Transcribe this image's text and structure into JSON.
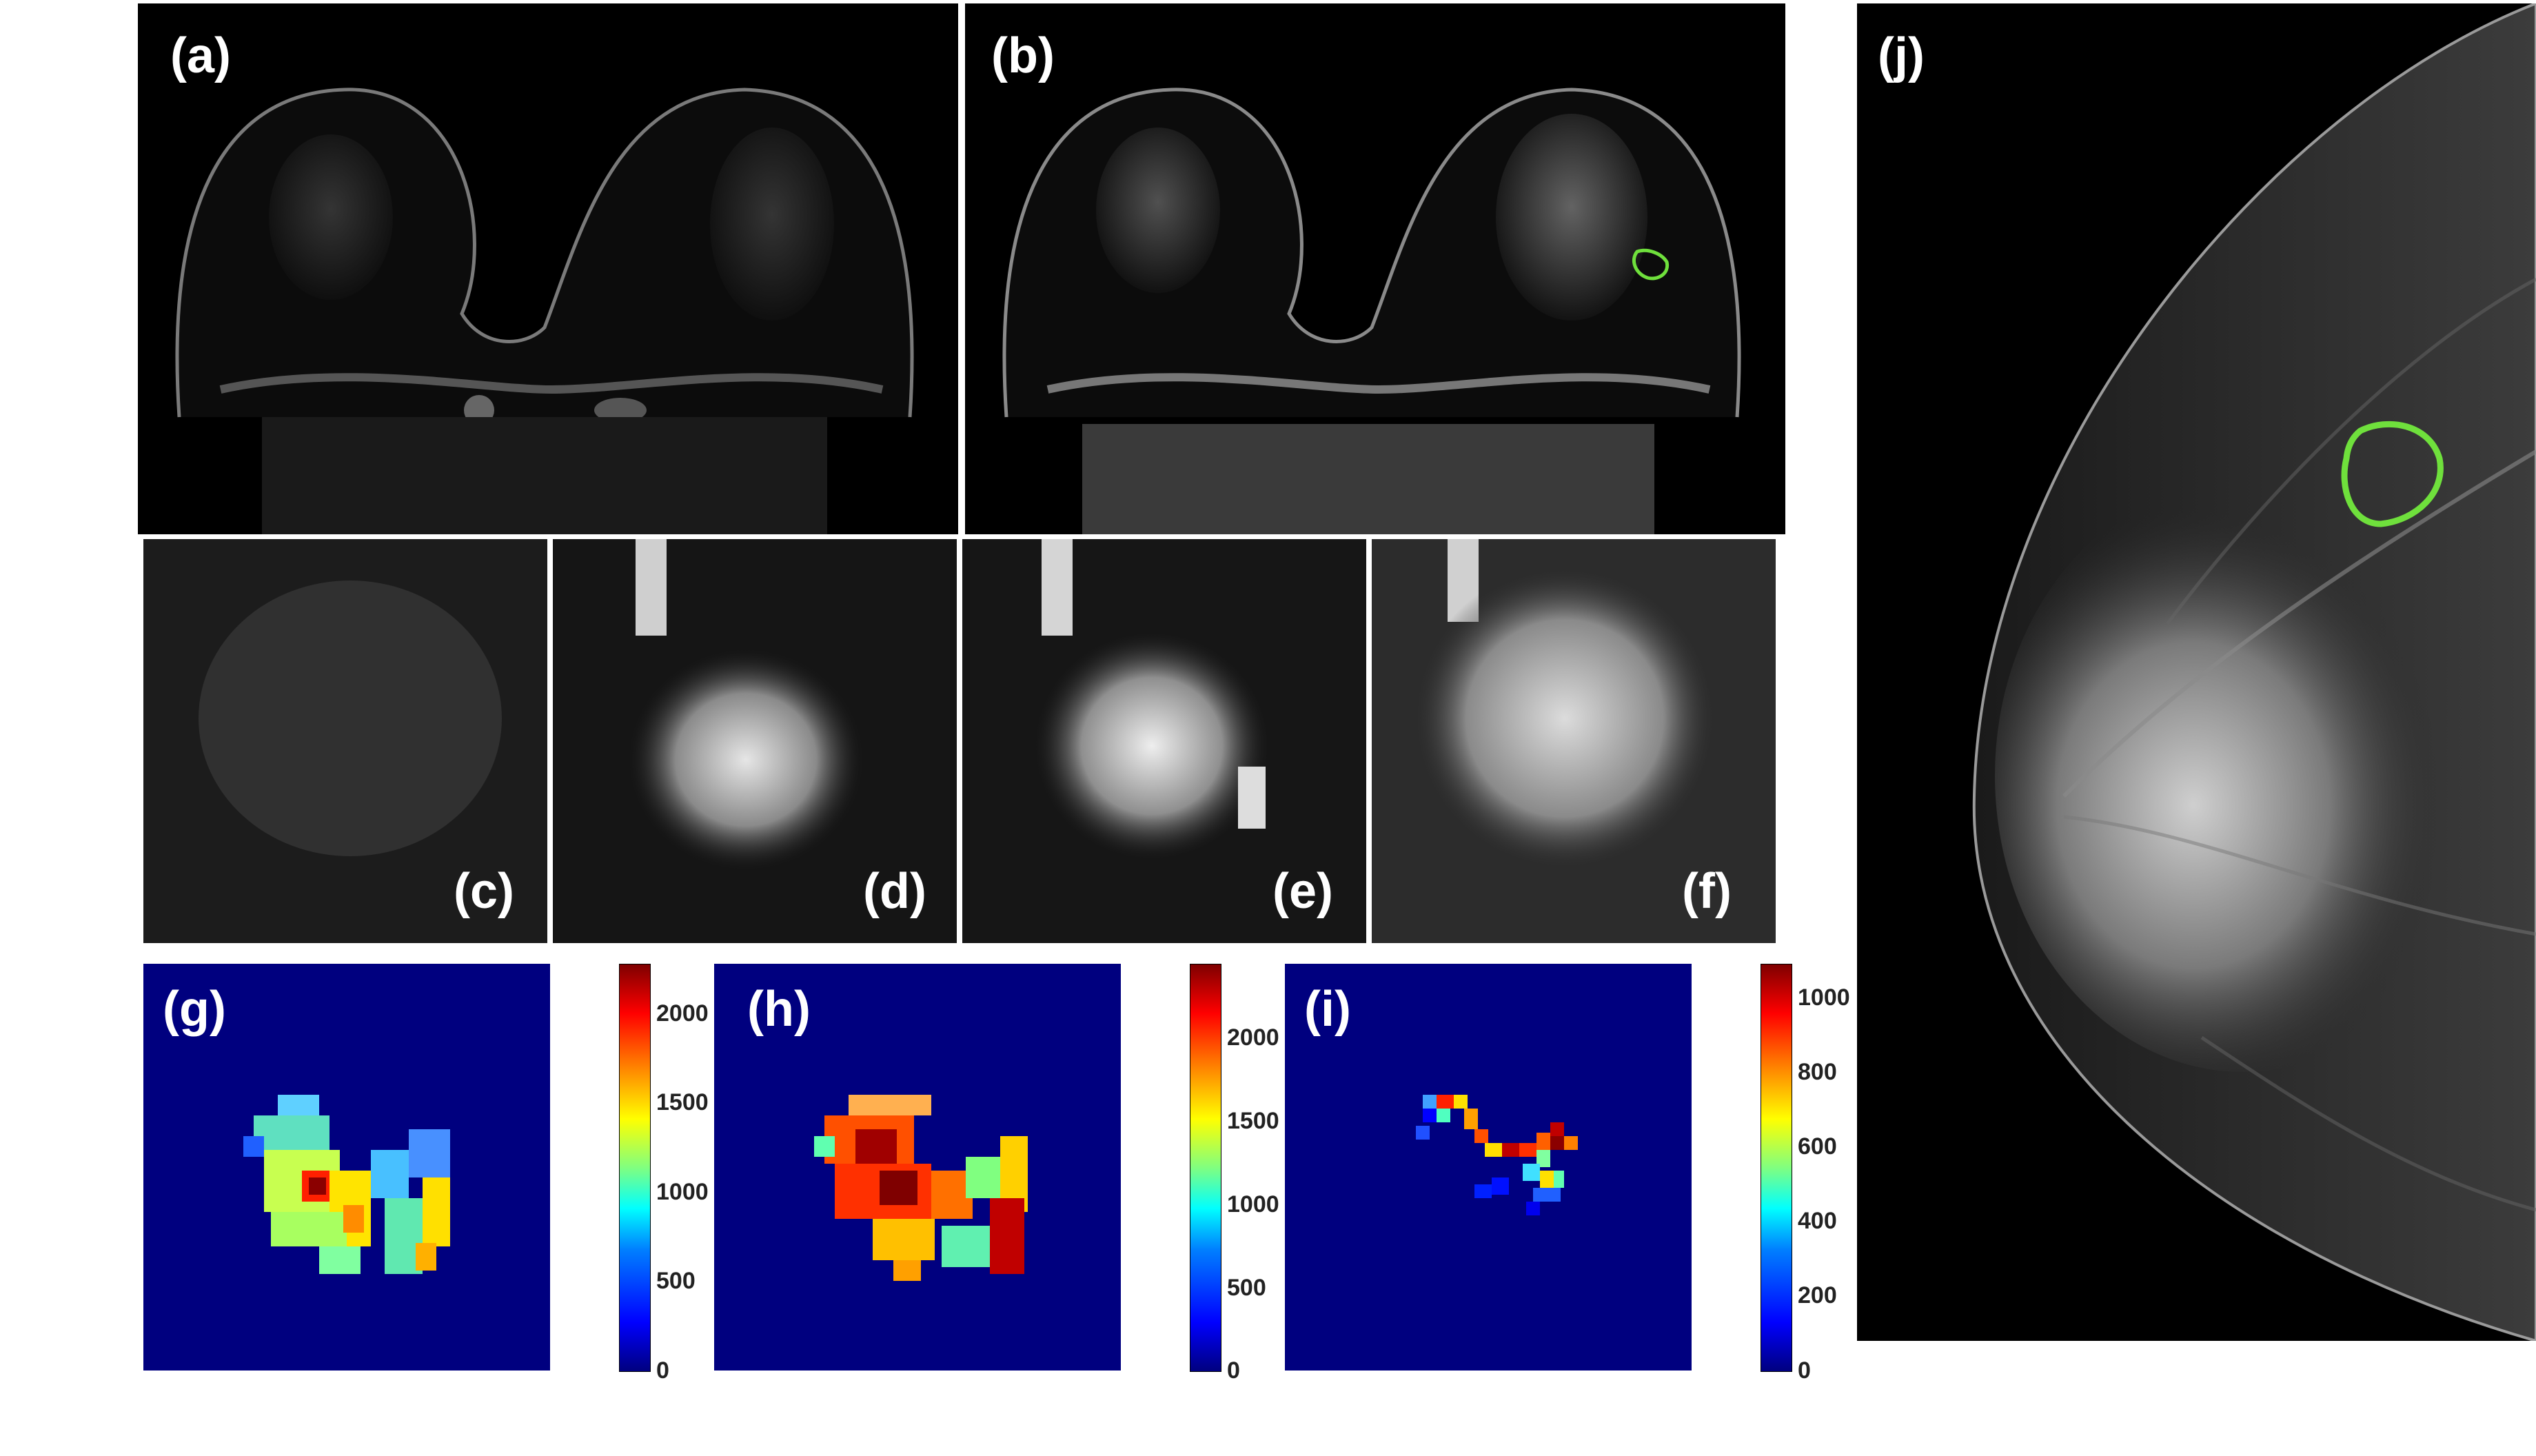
{
  "panels": {
    "a": "(a)",
    "b": "(b)",
    "c": "(c)",
    "d": "(d)",
    "e": "(e)",
    "f": "(f)",
    "g": "(g)",
    "h": "(h)",
    "i": "(i)",
    "j": "(j)"
  },
  "colorbars": {
    "g": [
      "2000",
      "1500",
      "1000",
      "500",
      "0"
    ],
    "h": [
      "2000",
      "1500",
      "1000",
      "500",
      "0"
    ],
    "i": [
      "1000",
      "800",
      "600",
      "400",
      "200",
      "0"
    ]
  },
  "colors": {
    "roi_outline": "#6fe03c",
    "background": "#000000",
    "map_background": "#00007f"
  }
}
